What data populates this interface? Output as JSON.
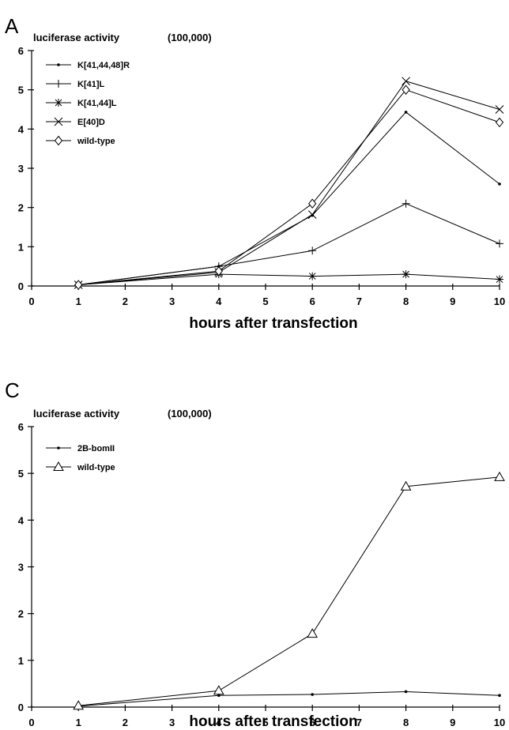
{
  "chart_data": [
    {
      "panel": "A",
      "type": "line",
      "ylabel": "luciferase activity",
      "yunit": "(100,000)",
      "xlabel": "hours after transfection",
      "xlim": [
        0,
        10
      ],
      "ylim": [
        0,
        6
      ],
      "xticks": [
        "0",
        "1",
        "2",
        "3",
        "4",
        "5",
        "6",
        "7",
        "8",
        "9",
        "10"
      ],
      "yticks": [
        "0",
        "1",
        "2",
        "3",
        "4",
        "5",
        "6"
      ],
      "grid": false,
      "legend_position": "top-left",
      "x": [
        1,
        4,
        6,
        8,
        10
      ],
      "series": [
        {
          "name": "K[41,44,48]R",
          "marker": "dot",
          "values": [
            0.03,
            0.5,
            1.8,
            4.43,
            2.6
          ]
        },
        {
          "name": "K[41]L",
          "marker": "plus",
          "values": [
            0.03,
            0.5,
            0.9,
            2.1,
            1.08
          ]
        },
        {
          "name": "K[41,44]L",
          "marker": "asterisk",
          "values": [
            0.03,
            0.3,
            0.25,
            0.3,
            0.17
          ]
        },
        {
          "name": "E[40]D",
          "marker": "x",
          "values": [
            0.03,
            0.35,
            1.82,
            5.22,
            4.5
          ]
        },
        {
          "name": "wild-type",
          "marker": "diamond",
          "values": [
            0.03,
            0.38,
            2.1,
            5.0,
            4.17
          ]
        }
      ]
    },
    {
      "panel": "C",
      "type": "line",
      "ylabel": "luciferase activity",
      "yunit": "(100,000)",
      "xlabel": "hours after transfection",
      "xlim": [
        0,
        10
      ],
      "ylim": [
        0,
        6
      ],
      "xticks": [
        "0",
        "1",
        "2",
        "3",
        "4",
        "5",
        "6",
        "7",
        "8",
        "9",
        "10"
      ],
      "yticks": [
        "0",
        "1",
        "2",
        "3",
        "4",
        "5",
        "6"
      ],
      "grid": false,
      "legend_position": "top-left",
      "x": [
        1,
        4,
        6,
        8,
        10
      ],
      "series": [
        {
          "name": "2B-bomII",
          "marker": "dot",
          "values": [
            0.02,
            0.25,
            0.27,
            0.33,
            0.25
          ]
        },
        {
          "name": "wild-type",
          "marker": "triangle",
          "values": [
            0.03,
            0.35,
            1.57,
            4.72,
            4.92
          ]
        }
      ]
    }
  ]
}
